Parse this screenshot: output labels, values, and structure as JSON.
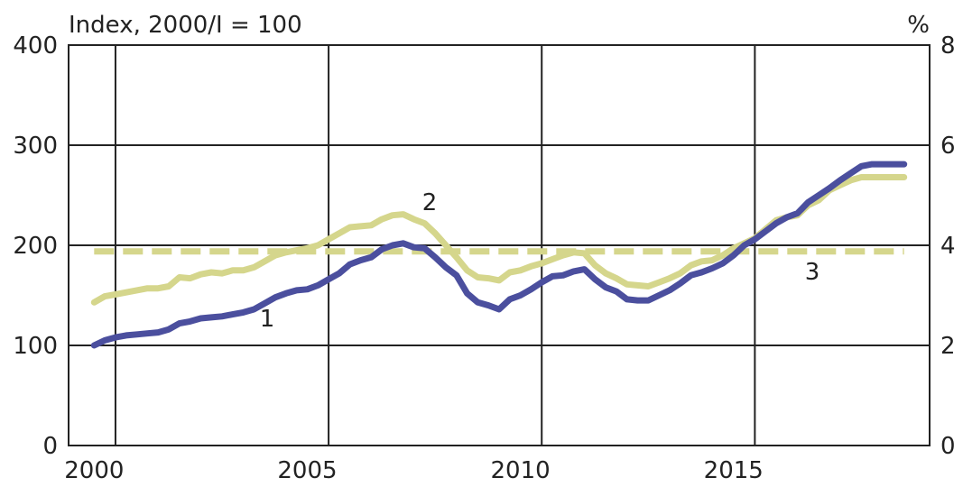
{
  "chart_data": {
    "type": "line",
    "ylabel_left": "Index, 2000/I = 100",
    "ylabel_right": "%",
    "x_ticks": [
      "2000",
      "2005",
      "2010",
      "2015"
    ],
    "y_ticks_left": [
      "0",
      "100",
      "200",
      "300",
      "400"
    ],
    "y_ticks_right": [
      "0",
      "2",
      "4",
      "6",
      "8"
    ],
    "xlim": [
      1999.4,
      2019.6
    ],
    "ylim_left": [
      0,
      400
    ],
    "ylim_right": [
      0,
      8
    ],
    "grid": true,
    "annotations": [
      "1",
      "2",
      "3"
    ],
    "series": [
      {
        "axis": "left",
        "color": "#4b4f9e",
        "style": "solid",
        "x": [
          2000.0,
          2000.25,
          2000.5,
          2000.75,
          2001.0,
          2001.25,
          2001.5,
          2001.75,
          2002.0,
          2002.25,
          2002.5,
          2002.75,
          2003.0,
          2003.25,
          2003.5,
          2003.75,
          2004.0,
          2004.25,
          2004.5,
          2004.75,
          2005.0,
          2005.25,
          2005.5,
          2005.75,
          2006.0,
          2006.25,
          2006.5,
          2006.75,
          2007.0,
          2007.25,
          2007.5,
          2007.75,
          2008.0,
          2008.25,
          2008.5,
          2008.75,
          2009.0,
          2009.25,
          2009.5,
          2009.75,
          2010.0,
          2010.25,
          2010.5,
          2010.75,
          2011.0,
          2011.25,
          2011.5,
          2011.75,
          2012.0,
          2012.25,
          2012.5,
          2012.75,
          2013.0,
          2013.25,
          2013.5,
          2013.75,
          2014.0,
          2014.25,
          2014.5,
          2014.75,
          2015.0,
          2015.25,
          2015.5,
          2015.75,
          2016.0,
          2016.25,
          2016.5,
          2016.75,
          2017.0,
          2017.25,
          2017.5,
          2017.75,
          2018.0,
          2018.25,
          2018.5,
          2018.75,
          2019.0
        ],
        "values": [
          100,
          105,
          108,
          110,
          111,
          112,
          113,
          116,
          122,
          124,
          127,
          128,
          129,
          131,
          133,
          136,
          142,
          148,
          152,
          155,
          156,
          160,
          166,
          172,
          181,
          185,
          188,
          196,
          200,
          202,
          198,
          197,
          188,
          178,
          170,
          152,
          143,
          140,
          136,
          146,
          150,
          156,
          163,
          169,
          170,
          174,
          176,
          166,
          158,
          154,
          146,
          145,
          145,
          150,
          155,
          162,
          170,
          173,
          177,
          182,
          190,
          200,
          206,
          214,
          222,
          228,
          232,
          243,
          250,
          257,
          265,
          272,
          279,
          281,
          281,
          281,
          281
        ]
      },
      {
        "axis": "left",
        "color": "#d5d68c",
        "style": "solid",
        "x": [
          2000.0,
          2000.25,
          2000.5,
          2000.75,
          2001.0,
          2001.25,
          2001.5,
          2001.75,
          2002.0,
          2002.25,
          2002.5,
          2002.75,
          2003.0,
          2003.25,
          2003.5,
          2003.75,
          2004.0,
          2004.25,
          2004.5,
          2004.75,
          2005.0,
          2005.25,
          2005.5,
          2005.75,
          2006.0,
          2006.25,
          2006.5,
          2006.75,
          2007.0,
          2007.25,
          2007.5,
          2007.75,
          2008.0,
          2008.25,
          2008.5,
          2008.75,
          2009.0,
          2009.25,
          2009.5,
          2009.75,
          2010.0,
          2010.25,
          2010.5,
          2010.75,
          2011.0,
          2011.25,
          2011.5,
          2011.75,
          2012.0,
          2012.25,
          2012.5,
          2012.75,
          2013.0,
          2013.25,
          2013.5,
          2013.75,
          2014.0,
          2014.25,
          2014.5,
          2014.75,
          2015.0,
          2015.25,
          2015.5,
          2015.75,
          2016.0,
          2016.25,
          2016.5,
          2016.75,
          2017.0,
          2017.25,
          2017.5,
          2017.75,
          2018.0,
          2018.25,
          2018.5,
          2018.75,
          2019.0
        ],
        "values": [
          143,
          149,
          151,
          153,
          155,
          157,
          157,
          159,
          168,
          167,
          171,
          173,
          172,
          175,
          175,
          178,
          184,
          190,
          193,
          195,
          197,
          200,
          206,
          212,
          218,
          219,
          220,
          226,
          230,
          231,
          226,
          222,
          212,
          200,
          188,
          175,
          168,
          167,
          165,
          173,
          175,
          179,
          182,
          186,
          190,
          193,
          192,
          180,
          172,
          167,
          161,
          160,
          159,
          163,
          167,
          172,
          180,
          184,
          185,
          190,
          197,
          202,
          207,
          216,
          225,
          228,
          230,
          240,
          245,
          255,
          260,
          265,
          268,
          268,
          268,
          268,
          268
        ]
      },
      {
        "axis": "right",
        "color": "#d5d68c",
        "style": "dashed",
        "x": [
          2000.0,
          2019.0
        ],
        "values": [
          3.88,
          3.88
        ]
      }
    ]
  }
}
